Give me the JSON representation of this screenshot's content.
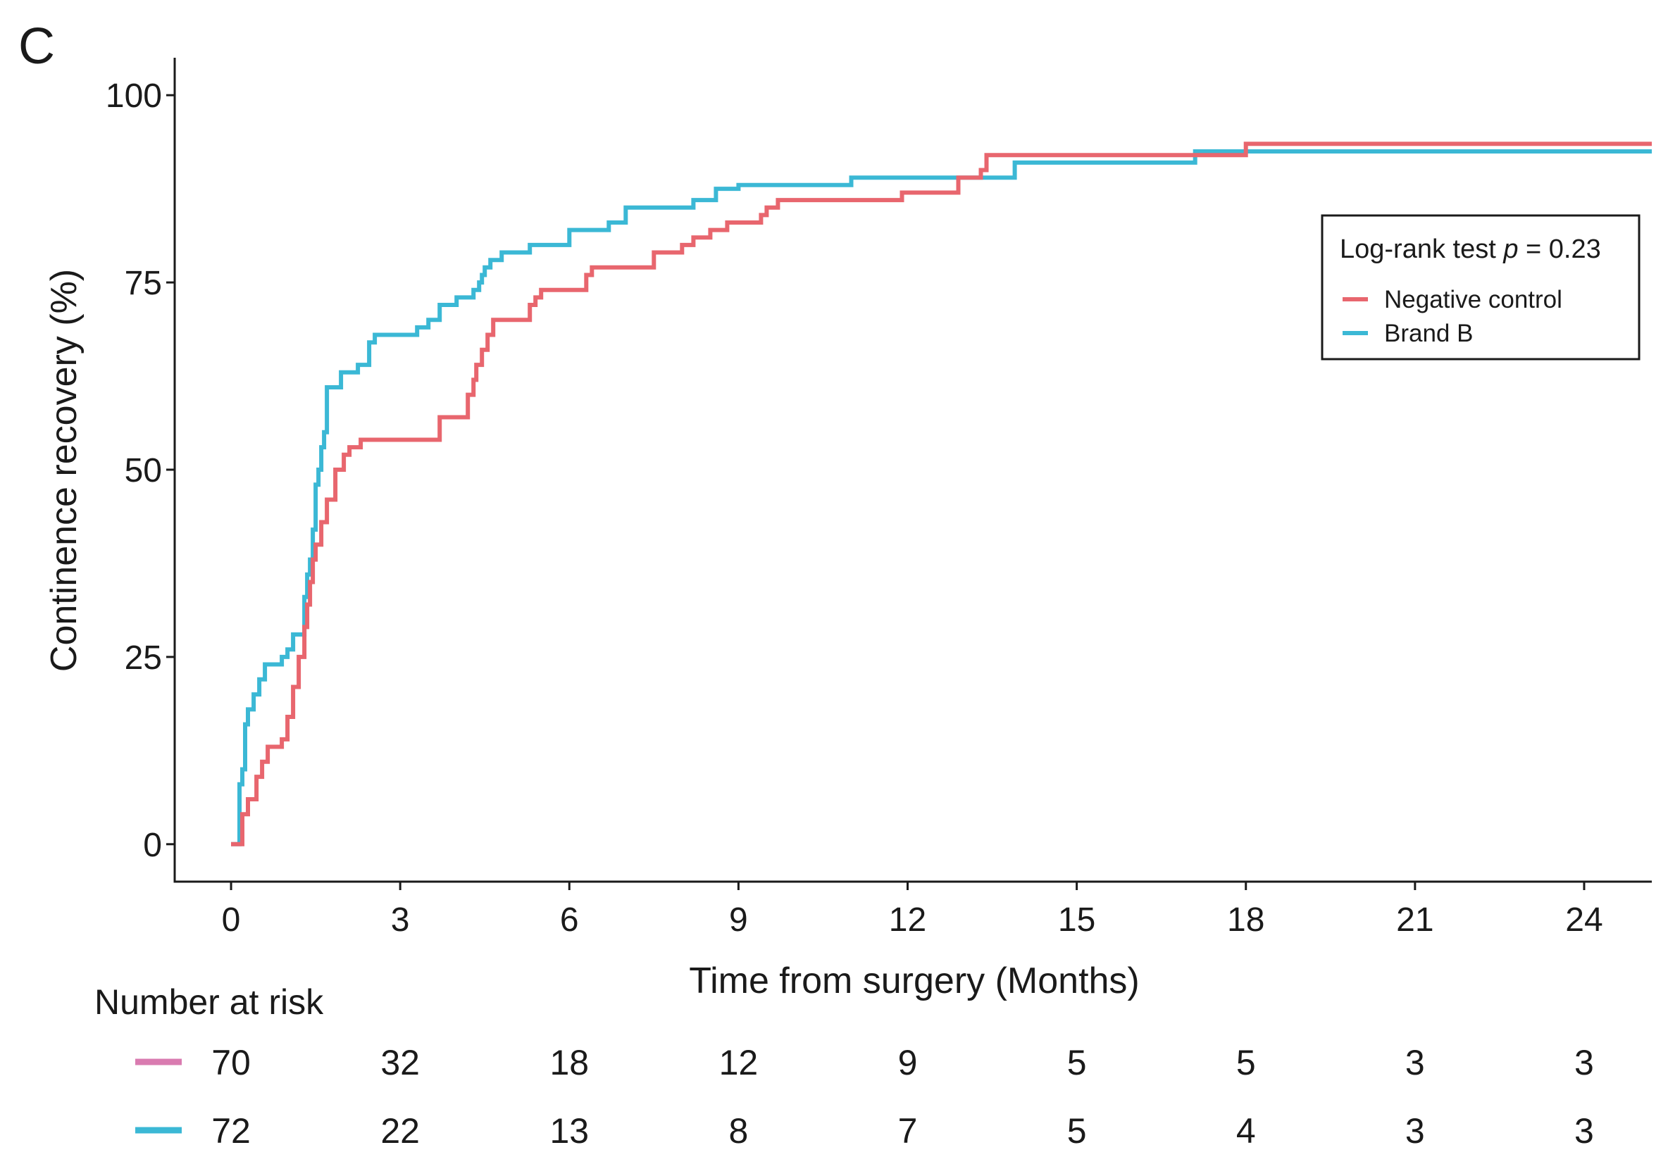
{
  "panel_label": "C",
  "chart_data": {
    "type": "line",
    "subtype": "kaplan-meier-step",
    "title": "",
    "xlabel": "Time from surgery (Months)",
    "ylabel": "Continence recovery (%)",
    "xlim": [
      -1,
      25.2
    ],
    "ylim": [
      -5,
      105
    ],
    "x_ticks": [
      0,
      3,
      6,
      9,
      12,
      15,
      18,
      21,
      24
    ],
    "y_ticks": [
      0,
      25,
      50,
      75,
      100
    ],
    "grid": false,
    "legend": {
      "placement": "top-right",
      "title_prefix": "Log-rank test ",
      "title_p": "p",
      "title_suffix": " = 0.23",
      "entries": [
        "Negative control",
        "Brand B"
      ]
    },
    "series": [
      {
        "name": "Negative control",
        "color": "#e8666e",
        "x": [
          0,
          0.2,
          0.2,
          0.3,
          0.45,
          0.55,
          0.65,
          0.9,
          1.0,
          1.1,
          1.2,
          1.3,
          1.35,
          1.4,
          1.45,
          1.5,
          1.6,
          1.7,
          1.85,
          2.0,
          2.1,
          2.3,
          2.5,
          3.7,
          4.2,
          4.3,
          4.35,
          4.45,
          4.55,
          4.65,
          4.7,
          5.3,
          5.4,
          5.5,
          5.7,
          6.3,
          6.4,
          7.5,
          8.0,
          8.2,
          8.5,
          8.8,
          9.4,
          9.5,
          9.7,
          10.0,
          11.9,
          12.6,
          12.9,
          13.3,
          13.4,
          14.0,
          17.2,
          18.0,
          25.2
        ],
        "y": [
          0,
          0,
          4,
          6,
          9,
          11,
          13,
          14,
          17,
          21,
          25,
          29,
          32,
          35,
          38,
          40,
          43,
          46,
          50,
          52,
          53,
          54,
          54,
          57,
          60,
          62,
          64,
          66,
          68,
          70,
          70,
          72,
          73,
          74,
          74,
          76,
          77,
          79,
          80,
          81,
          82,
          83,
          84,
          85,
          86,
          86,
          87,
          87,
          89,
          90,
          92,
          92,
          92,
          93.5,
          93.5
        ]
      },
      {
        "name": "Brand B",
        "color": "#3bb8d5",
        "x": [
          0,
          0.15,
          0.2,
          0.25,
          0.3,
          0.4,
          0.5,
          0.6,
          0.7,
          0.9,
          1.0,
          1.1,
          1.3,
          1.35,
          1.4,
          1.45,
          1.5,
          1.55,
          1.6,
          1.65,
          1.7,
          1.95,
          2.25,
          2.45,
          2.55,
          3.0,
          3.3,
          3.5,
          3.7,
          4.0,
          4.3,
          4.4,
          4.45,
          4.5,
          4.6,
          4.8,
          5.3,
          6.0,
          6.7,
          7.0,
          8.0,
          8.2,
          8.6,
          9.0,
          11.0,
          12.5,
          13.5,
          13.9,
          14.5,
          17.1,
          17.9,
          25.2
        ],
        "y": [
          0,
          8,
          10,
          16,
          18,
          20,
          22,
          24,
          24,
          25,
          26,
          28,
          33,
          36,
          38,
          42,
          48,
          50,
          53,
          55,
          61,
          63,
          64,
          67,
          68,
          68,
          69,
          70,
          72,
          73,
          74,
          75,
          76,
          77,
          78,
          79,
          80,
          82,
          83,
          85,
          85,
          86,
          87.5,
          88,
          89,
          89,
          89,
          91,
          91,
          92.5,
          92.5,
          92.5
        ]
      }
    ]
  },
  "risk_table": {
    "title": "Number at risk",
    "rows": [
      {
        "name": "Negative control",
        "color": "#d97bb0",
        "values": [
          "70",
          "32",
          "18",
          "12",
          "9",
          "5",
          "5",
          "3",
          "3"
        ]
      },
      {
        "name": "Brand B",
        "color": "#3bb8d5",
        "values": [
          "72",
          "22",
          "13",
          "8",
          "7",
          "5",
          "4",
          "3",
          "3"
        ]
      }
    ]
  }
}
